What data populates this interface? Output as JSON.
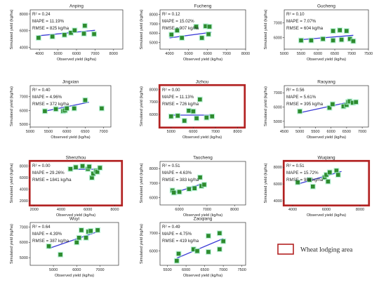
{
  "chart_data": [
    {
      "type": "scatter",
      "title": "Anping",
      "xlabel": "Observed yield (kg/ha)",
      "ylabel": "Simulated yield (kg/ha)",
      "xlim": [
        3500,
        8500
      ],
      "ylim": [
        3800,
        8500
      ],
      "xticks": [
        4000,
        5000,
        6000,
        7000,
        8000
      ],
      "yticks": [
        4000,
        6000,
        8000
      ],
      "points": [
        [
          3950,
          5150
        ],
        [
          4700,
          5300
        ],
        [
          5350,
          5500
        ],
        [
          5700,
          5750
        ],
        [
          5900,
          6050
        ],
        [
          6400,
          5650
        ],
        [
          6450,
          6600
        ],
        [
          6950,
          5600
        ]
      ],
      "fit": [
        [
          3950,
          5400
        ],
        [
          7000,
          6050
        ]
      ],
      "r2": "R² = 0.24",
      "mape": "MAPE = 11.19%",
      "rmse": "RMSE = 825 kg/ha",
      "lodging": false
    },
    {
      "type": "scatter",
      "title": "Fucheng",
      "xlabel": "Observed yield (kg/ha)",
      "ylabel": "Simulated yield (kg/ha)",
      "xlim": [
        3500,
        8000
      ],
      "ylim": [
        4300,
        8500
      ],
      "xticks": [
        4000,
        5000,
        6000,
        7000,
        8000
      ],
      "yticks": [
        5000,
        6000,
        7000,
        8000
      ],
      "points": [
        [
          4100,
          5850
        ],
        [
          4400,
          6300
        ],
        [
          4650,
          5500
        ],
        [
          5400,
          6700
        ],
        [
          5700,
          5500
        ],
        [
          5900,
          6750
        ],
        [
          6050,
          5900
        ],
        [
          6100,
          6700
        ]
      ],
      "fit": [
        [
          4000,
          5500
        ],
        [
          6200,
          6100
        ]
      ],
      "r2": "R² = 0.12",
      "mape": "MAPE = 15.02%",
      "rmse": "RMSE = 907 kg/ha",
      "lodging": false
    },
    {
      "type": "scatter",
      "title": "Gucheng",
      "xlabel": "Observed yield (kg/ha)",
      "ylabel": "Simulated yield (kg/ha)",
      "xlim": [
        5000,
        7500
      ],
      "ylim": [
        5200,
        7900
      ],
      "xticks": [
        5000,
        5500,
        6000,
        6500,
        7000,
        7500
      ],
      "yticks": [
        6000,
        7000
      ],
      "points": [
        [
          5500,
          5800
        ],
        [
          5800,
          5800
        ],
        [
          6150,
          5900
        ],
        [
          6450,
          5800
        ],
        [
          6450,
          6450
        ],
        [
          6650,
          6500
        ],
        [
          6700,
          5850
        ],
        [
          6850,
          6450
        ],
        [
          6950,
          5900
        ],
        [
          7050,
          5750
        ]
      ],
      "fit": [
        [
          5500,
          5850
        ],
        [
          7050,
          6150
        ]
      ],
      "r2": "R² = 0.10",
      "mape": "MAPE = 7.07%",
      "rmse": "RMSE = 604 kg/ha",
      "lodging": false
    },
    {
      "type": "scatter",
      "title": "Jingxian",
      "xlabel": "Observed yield (kg/ha)",
      "ylabel": "Simulated yield (kg/ha)",
      "xlim": [
        5000,
        7200
      ],
      "ylim": [
        4800,
        7800
      ],
      "xticks": [
        5000,
        5500,
        6000,
        6500,
        7000
      ],
      "yticks": [
        5000,
        6000,
        7000
      ],
      "points": [
        [
          5400,
          5950
        ],
        [
          5700,
          6100
        ],
        [
          5900,
          5950
        ],
        [
          5950,
          6000
        ],
        [
          6000,
          6150
        ],
        [
          6200,
          6150
        ],
        [
          6500,
          6750
        ],
        [
          6950,
          6150
        ]
      ],
      "fit": [
        [
          5400,
          5950
        ],
        [
          6600,
          6600
        ]
      ],
      "r2": "R² = 0.40",
      "mape": "MAPE = 4.96%",
      "rmse": "RMSE = 372 kg/ha",
      "lodging": false
    },
    {
      "type": "scatter",
      "title": "Jizhou",
      "xlabel": "Observed yield (kg/ha)",
      "ylabel": "Simulated yield (kg/ha)",
      "xlim": [
        4500,
        8300
      ],
      "ylim": [
        5000,
        8300
      ],
      "xticks": [
        5000,
        6000,
        7000,
        8000
      ],
      "yticks": [
        6000,
        7000,
        8000
      ],
      "points": [
        [
          5000,
          5850
        ],
        [
          5300,
          5900
        ],
        [
          5600,
          5500
        ],
        [
          5800,
          6300
        ],
        [
          6000,
          6250
        ],
        [
          6150,
          5700
        ],
        [
          6300,
          7200
        ],
        [
          6600,
          5750
        ],
        [
          6850,
          5850
        ]
      ],
      "fit": [
        [
          5000,
          5950
        ],
        [
          6850,
          5950
        ]
      ],
      "r2": "R² = 0.00",
      "mape": "MAPE = 11.13%",
      "rmse": "RMSE = 726 kg/ha",
      "lodging": true
    },
    {
      "type": "scatter",
      "title": "Raoyang",
      "xlabel": "Observed yield (kg/ha)",
      "ylabel": "Simulated yield (kg/ha)",
      "xlim": [
        4500,
        7200
      ],
      "ylim": [
        4600,
        7500
      ],
      "xticks": [
        4500,
        5000,
        5500,
        6000,
        6500,
        7000
      ],
      "yticks": [
        5000,
        6000,
        7000
      ],
      "points": [
        [
          5000,
          5700
        ],
        [
          5950,
          5950
        ],
        [
          6050,
          6200
        ],
        [
          6400,
          6050
        ],
        [
          6500,
          6150
        ],
        [
          6550,
          6350
        ],
        [
          6600,
          6400
        ],
        [
          6700,
          6300
        ],
        [
          6800,
          6350
        ]
      ],
      "fit": [
        [
          5000,
          5600
        ],
        [
          6800,
          6450
        ]
      ],
      "r2": "R² = 0.56",
      "mape": "MAPE = 5.61%",
      "rmse": "RMSE = 395 kg/ha",
      "lodging": false
    },
    {
      "type": "scatter",
      "title": "Shenzhou",
      "xlabel": "Observed yield (kg/ha)",
      "ylabel": "Simulated yield (kg/ha)",
      "xlim": [
        1700,
        8500
      ],
      "ylim": [
        1300,
        8800
      ],
      "xticks": [
        2000,
        4000,
        6000,
        8000
      ],
      "yticks": [
        2000,
        4000,
        6000,
        8000
      ],
      "points": [
        [
          4700,
          7500
        ],
        [
          5100,
          7800
        ],
        [
          5600,
          8000
        ],
        [
          6000,
          7500
        ],
        [
          6100,
          7900
        ],
        [
          6300,
          6000
        ],
        [
          6400,
          6700
        ],
        [
          6600,
          7200
        ],
        [
          6700,
          7000
        ],
        [
          6900,
          7700
        ]
      ],
      "fit": [
        [
          4700,
          7450
        ],
        [
          6950,
          7450
        ]
      ],
      "r2": "R² = 0.00",
      "mape": "MAPE = 29.26%",
      "rmse": "RMSE = 1841 kg/ha",
      "lodging": true
    },
    {
      "type": "scatter",
      "title": "Taocheng",
      "xlabel": "Observed yield (kg/ha)",
      "ylabel": "Simulated yield (kg/ha)",
      "xlim": [
        5300,
        8400
      ],
      "ylim": [
        5500,
        8500
      ],
      "xticks": [
        6000,
        7000,
        8000
      ],
      "yticks": [
        6000,
        7000,
        8000
      ],
      "points": [
        [
          5750,
          6500
        ],
        [
          5800,
          6350
        ],
        [
          6000,
          6400
        ],
        [
          6350,
          6600
        ],
        [
          6550,
          6650
        ],
        [
          6750,
          7400
        ],
        [
          6800,
          6800
        ],
        [
          6900,
          6900
        ]
      ],
      "fit": [
        [
          5750,
          6300
        ],
        [
          6900,
          7000
        ]
      ],
      "r2": "R² = 0.51",
      "mape": "MAPE = 4.63%",
      "rmse": "RMSE = 383 kg/ha",
      "lodging": false
    },
    {
      "type": "scatter",
      "title": "Wuqiang",
      "xlabel": "Observed yield (kg/ha)",
      "ylabel": "Simulated yield (kg/ha)",
      "xlim": [
        3500,
        8500
      ],
      "ylim": [
        3500,
        8700
      ],
      "xticks": [
        4000,
        6000,
        8000
      ],
      "yticks": [
        4000,
        6000,
        8000
      ],
      "points": [
        [
          4300,
          6200
        ],
        [
          5000,
          6500
        ],
        [
          5200,
          5700
        ],
        [
          5900,
          6800
        ],
        [
          6000,
          7100
        ],
        [
          6100,
          6300
        ],
        [
          6200,
          7400
        ],
        [
          6600,
          7600
        ],
        [
          6700,
          7100
        ]
      ],
      "fit": [
        [
          4300,
          6000
        ],
        [
          6900,
          7500
        ]
      ],
      "r2": "R² = 0.51",
      "mape": "MAPE = 15.72%",
      "rmse": "RMSE = 988 kg/ha",
      "lodging": true
    },
    {
      "type": "scatter",
      "title": "Wuyi",
      "xlabel": "Observed yield (kg/ha)",
      "ylabel": "Simulated yield (kg/ha)",
      "xlim": [
        4000,
        7800
      ],
      "ylim": [
        4500,
        7300
      ],
      "xticks": [
        5000,
        6000,
        7000
      ],
      "yticks": [
        5000,
        6000,
        7000
      ],
      "points": [
        [
          4800,
          5750
        ],
        [
          5300,
          5200
        ],
        [
          6000,
          6000
        ],
        [
          6100,
          6300
        ],
        [
          6200,
          6800
        ],
        [
          6400,
          6300
        ],
        [
          6500,
          6700
        ],
        [
          6600,
          6750
        ],
        [
          6900,
          6800
        ]
      ],
      "fit": [
        [
          4800,
          5600
        ],
        [
          6900,
          6700
        ]
      ],
      "r2": "R² = 0.64",
      "mape": "MAPE = 4.39%",
      "rmse": "RMSE = 387 kg/ha",
      "lodging": false
    },
    {
      "type": "scatter",
      "title": "Zaoqiang",
      "xlabel": "Observed yield (kg/ha)",
      "ylabel": "Simulated yield (kg/ha)",
      "xlim": [
        5300,
        7600
      ],
      "ylim": [
        5200,
        7600
      ],
      "xticks": [
        5500,
        6000,
        6500,
        7000,
        7500
      ],
      "yticks": [
        6000,
        7000
      ],
      "points": [
        [
          5750,
          5450
        ],
        [
          5800,
          5850
        ],
        [
          6200,
          6100
        ],
        [
          6300,
          6000
        ],
        [
          6600,
          6850
        ],
        [
          6600,
          5950
        ],
        [
          6900,
          6100
        ],
        [
          6900,
          7000
        ],
        [
          7000,
          6550
        ]
      ],
      "fit": [
        [
          5750,
          5600
        ],
        [
          7000,
          6700
        ]
      ],
      "r2": "R² = 0.49",
      "mape": "MAPE = 4.75%",
      "rmse": "RMSE = 419 kg/ha",
      "lodging": false
    }
  ],
  "legend": {
    "label": "Wheat lodging area",
    "box_color": "#b22222"
  },
  "colors": {
    "marker": "#2e8b2e",
    "marker_halo": "#a8efcf",
    "fit_line": "#3b3bd6",
    "lodging_frame": "#b22222"
  }
}
